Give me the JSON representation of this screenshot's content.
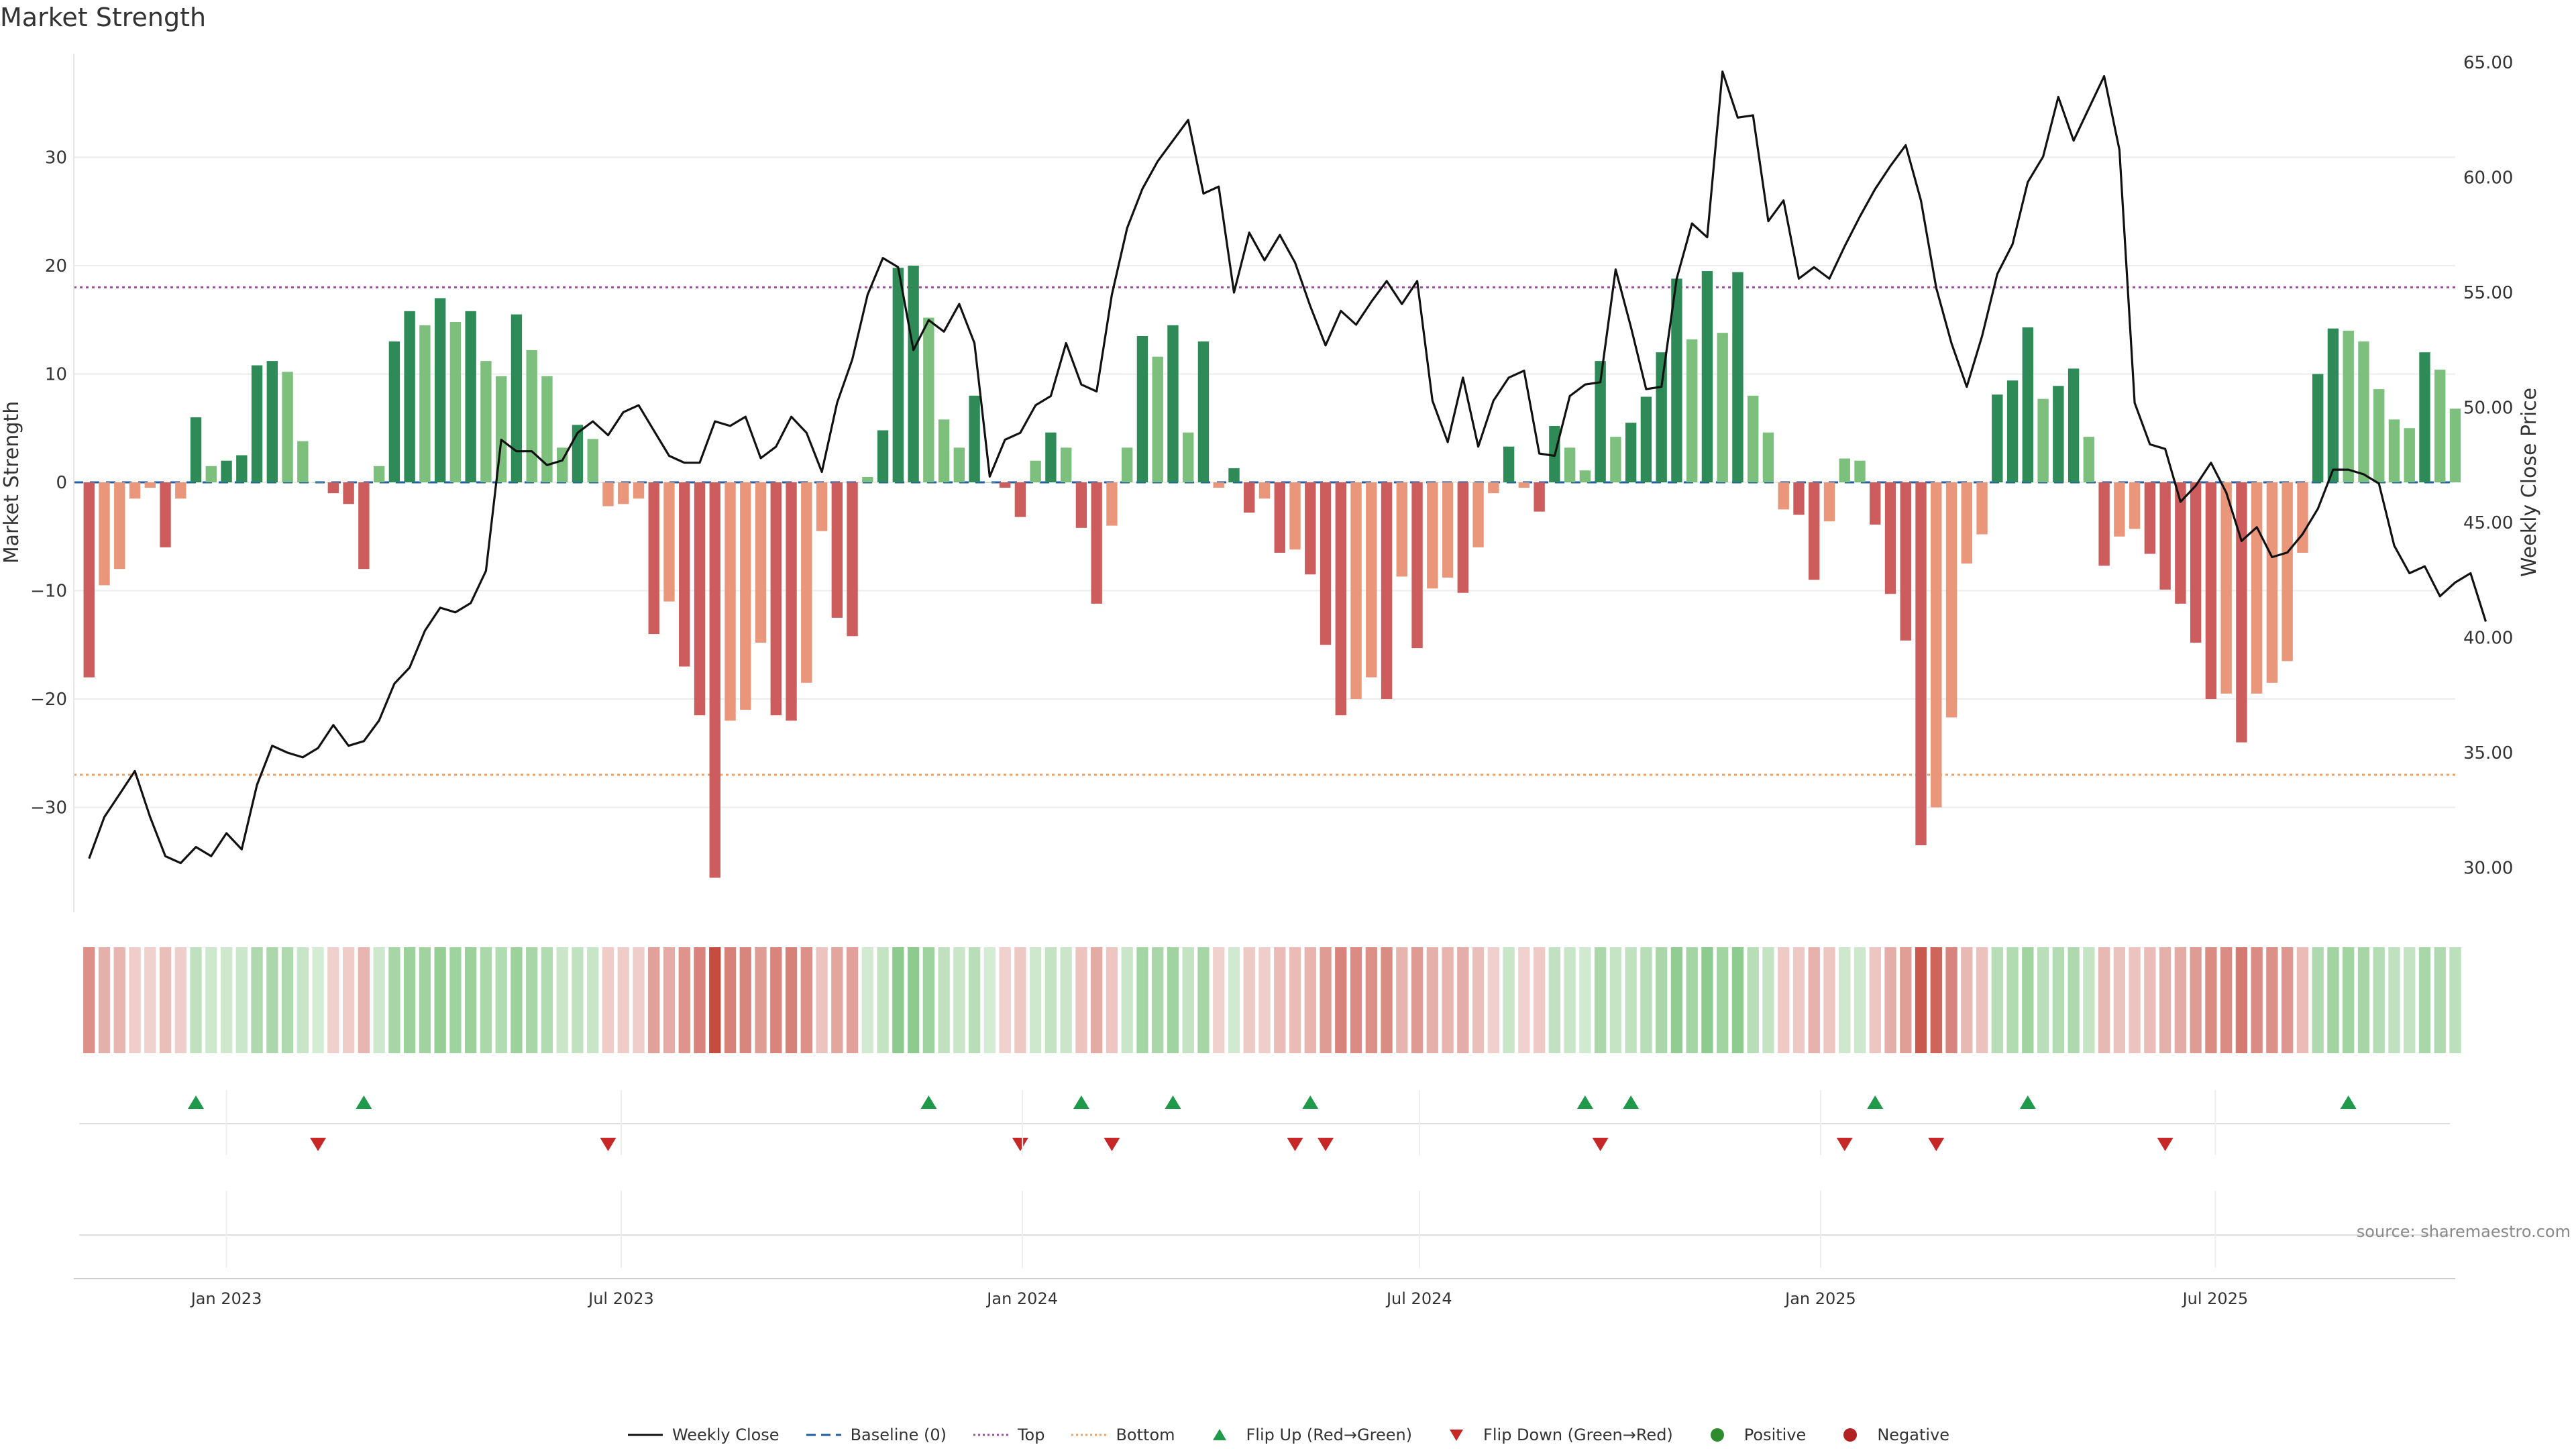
{
  "title": "Market Strength",
  "source": "source: sharemaestro.com",
  "colors": {
    "strong_green": "#2e8b57",
    "light_green": "#7dc07d",
    "strong_red": "#cd5c5c",
    "light_red": "#e9967a",
    "price_line": "#111111",
    "baseline": "#1f5fa8",
    "top_line": "#9c4c9c",
    "bottom_line": "#f0a060",
    "flip_up": "#1e9a4a",
    "flip_down": "#c62828",
    "positive": "#2e8b2e",
    "negative": "#b22222"
  },
  "legend": [
    {
      "label": "Weekly Close",
      "icon": "solid-line",
      "color": "#111111"
    },
    {
      "label": "Baseline (0)",
      "icon": "dashed-line",
      "color": "#1f5fa8"
    },
    {
      "label": "Top",
      "icon": "dotted-line",
      "color": "#9c4c9c"
    },
    {
      "label": "Bottom",
      "icon": "dotted-line",
      "color": "#f0a060"
    },
    {
      "label": "Flip Up (Red→Green)",
      "icon": "triangle-up",
      "color": "#1e9a4a"
    },
    {
      "label": "Flip Down (Green→Red)",
      "icon": "triangle-down",
      "color": "#c62828"
    },
    {
      "label": "Positive",
      "icon": "dot",
      "color": "#2e8b2e"
    },
    {
      "label": "Negative",
      "icon": "dot",
      "color": "#b22222"
    }
  ],
  "chart_data": {
    "type": "bar",
    "x_axis": {
      "type": "date",
      "range": [
        "2022-10-23",
        "2025-10-19"
      ],
      "ticks": [
        {
          "date": "2023-01-01",
          "label": "Jan 2023"
        },
        {
          "date": "2023-07-01",
          "label": "Jul 2023"
        },
        {
          "date": "2024-01-01",
          "label": "Jan 2024"
        },
        {
          "date": "2024-07-01",
          "label": "Jul 2024"
        },
        {
          "date": "2025-01-01",
          "label": "Jan 2025"
        },
        {
          "date": "2025-07-01",
          "label": "Jul 2025"
        }
      ]
    },
    "y_left": {
      "label": "Market Strength",
      "ylim": [
        -39,
        40
      ],
      "ticks": [
        30,
        20,
        10,
        0,
        -10,
        -20,
        -30
      ]
    },
    "y_right": {
      "label": "Weekly Close Price",
      "ylim": [
        28.2,
        65.5
      ],
      "ticks": [
        "30.00",
        "35.00",
        "40.00",
        "45.00",
        "50.00",
        "55.00",
        "60.00",
        "65.00"
      ]
    },
    "grid": true,
    "legend_position": "bottom-center",
    "reference_lines": [
      {
        "name": "Baseline (0)",
        "value": 0,
        "style": "dashed"
      },
      {
        "name": "Top",
        "value": 18,
        "style": "dotted"
      },
      {
        "name": "Bottom",
        "value": -27,
        "style": "dotted"
      }
    ],
    "start_date": "2022-10-30",
    "strength": [
      -18,
      -9.5,
      -8,
      -1.5,
      -0.5,
      -6,
      -1.5,
      6,
      1.5,
      2,
      2.5,
      10.8,
      11.2,
      10.2,
      3.8,
      0,
      -1,
      -2,
      -8,
      1.5,
      13,
      15.8,
      14.5,
      17,
      14.8,
      15.8,
      11.2,
      9.8,
      15.5,
      12.2,
      9.8,
      3.2,
      5.3,
      4,
      -2.2,
      -2,
      -1.5,
      -14,
      -11,
      -17,
      -21.5,
      -36.5,
      -22,
      -21,
      -14.8,
      -21.5,
      -22,
      -18.5,
      -4.5,
      -12.5,
      -14.2,
      0.5,
      4.8,
      19.8,
      20,
      15.2,
      5.8,
      3.2,
      8,
      0,
      -0.5,
      -3.2,
      2,
      4.6,
      3.2,
      -4.2,
      -11.2,
      -4,
      3.2,
      13.5,
      11.6,
      14.5,
      4.6,
      13,
      -0.5,
      1.3,
      -2.8,
      -1.5,
      -6.5,
      -6.2,
      -8.5,
      -15,
      -21.5,
      -20,
      -18,
      -20,
      -8.7,
      -15.3,
      -9.8,
      -8.8,
      -10.2,
      -6,
      -1,
      3.3,
      -0.5,
      -2.7,
      5.2,
      3.2,
      1.1,
      11.2,
      4.2,
      5.5,
      7.9,
      12,
      18.8,
      13.2,
      19.5,
      13.8,
      19.4,
      8,
      4.6,
      -2.5,
      -3,
      -9,
      -3.6,
      2.2,
      2,
      -3.9,
      -10.3,
      -14.6,
      -33.5,
      -30,
      -21.7,
      -7.5,
      -4.8,
      8.1,
      9.4,
      14.3,
      7.7,
      8.9,
      10.5,
      4.2,
      -7.7,
      -5,
      -4.3,
      -6.6,
      -9.9,
      -11.2,
      -14.8,
      -20,
      -19.5,
      -24,
      -19.5,
      -18.5,
      -16.5,
      -6.5,
      10,
      14.2,
      14,
      13,
      8.6,
      5.8,
      5,
      12,
      10.4,
      6.8
    ],
    "close": [
      30.4,
      32.2,
      33.2,
      34.2,
      32.2,
      30.5,
      30.2,
      30.9,
      30.5,
      31.5,
      30.8,
      33.6,
      35.3,
      35,
      34.8,
      35.2,
      36.2,
      35.3,
      35.5,
      36.4,
      38,
      38.7,
      40.3,
      41.3,
      41.1,
      41.5,
      42.9,
      48.6,
      48.1,
      48.1,
      47.5,
      47.7,
      48.9,
      49.4,
      48.8,
      49.8,
      50.1,
      49,
      47.9,
      47.6,
      47.6,
      49.4,
      49.2,
      49.6,
      47.8,
      48.3,
      49.6,
      48.9,
      47.2,
      50.2,
      52.1,
      54.9,
      56.5,
      56.1,
      52.5,
      53.8,
      53.3,
      54.5,
      52.8,
      47,
      48.6,
      48.9,
      50.1,
      50.5,
      52.8,
      51,
      50.7,
      54.9,
      57.8,
      59.5,
      60.7,
      61.6,
      62.5,
      59.3,
      59.6,
      55,
      57.6,
      56.4,
      57.5,
      56.3,
      54.4,
      52.7,
      54.2,
      53.6,
      54.6,
      55.5,
      54.5,
      55.5,
      50.3,
      48.5,
      51.3,
      48.3,
      50.3,
      51.3,
      51.6,
      48,
      47.9,
      50.5,
      51,
      51.1,
      56,
      53.5,
      50.8,
      50.9,
      55.6,
      58,
      57.4,
      64.6,
      62.6,
      62.7,
      58.1,
      59,
      55.6,
      56.1,
      55.6,
      57,
      58.3,
      59.5,
      60.5,
      61.4,
      59,
      55.2,
      52.8,
      50.9,
      53.1,
      55.8,
      57.1,
      59.8,
      60.9,
      63.5,
      61.6,
      63,
      64.4,
      61.2,
      50.2,
      48.4,
      48.2,
      45.9,
      46.6,
      47.6,
      46.3,
      44.2,
      44.8,
      43.5,
      43.7,
      44.5,
      45.6,
      47.3,
      47.3,
      47.1,
      46.7,
      44,
      42.8,
      43.1,
      41.8,
      42.4,
      42.8,
      40.7
    ],
    "flip_up": [
      "2022-12-18",
      "2023-03-05",
      "2023-11-19",
      "2024-01-28",
      "2024-03-10",
      "2024-05-12",
      "2024-09-15",
      "2024-10-06",
      "2025-01-26",
      "2025-04-06",
      "2025-08-31"
    ],
    "flip_down": [
      "2023-02-12",
      "2023-06-25",
      "2023-12-31",
      "2024-02-11",
      "2024-05-05",
      "2024-05-19",
      "2024-09-22",
      "2025-01-12",
      "2025-02-23",
      "2025-06-08"
    ]
  }
}
